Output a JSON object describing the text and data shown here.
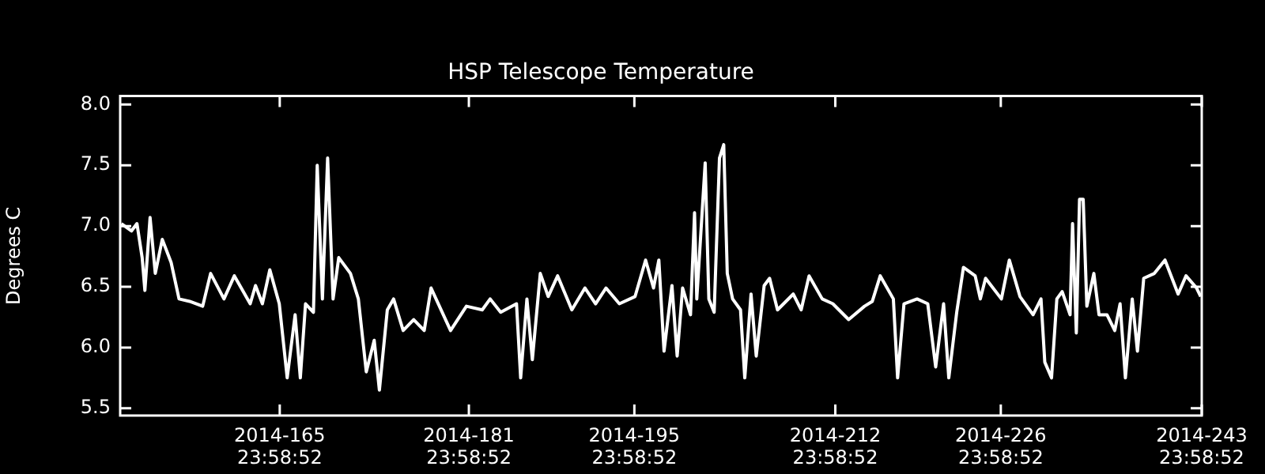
{
  "chart_data": {
    "type": "line",
    "title": "HSP Telescope Temperature",
    "ylabel": "Degrees C",
    "x": [
      "2014-06-01T14:24",
      "2014-06-02T11:02",
      "2014-06-02T22:05",
      "2014-06-03T08:38",
      "2014-06-03T14:10",
      "2014-06-04T00:43",
      "2014-06-04T11:17",
      "2014-06-05T01:26",
      "2014-06-05T19:26",
      "2014-06-06T11:31",
      "2014-06-07T08:53",
      "2014-06-08T11:31",
      "2014-06-09T03:36",
      "2014-06-10T06:43",
      "2014-06-11T03:50",
      "2014-06-12T12:00",
      "2014-06-12T22:48",
      "2014-06-13T12:43",
      "2014-06-14T03:50",
      "2014-06-14T23:02",
      "2014-06-15T15:07",
      "2014-06-16T07:12",
      "2014-06-16T17:46",
      "2014-06-17T04:19",
      "2014-06-17T20:24",
      "2014-06-18T04:05",
      "2014-06-18T14:38",
      "2014-06-19T01:12",
      "2014-06-19T12:14",
      "2014-06-19T23:46",
      "2014-06-20T23:31",
      "2014-06-21T15:36",
      "2014-06-22T07:41",
      "2014-06-22T23:46",
      "2014-06-23T10:19",
      "2014-06-24T02:24",
      "2014-06-24T15:07",
      "2014-06-25T10:34",
      "2014-06-26T07:55",
      "2014-06-27T05:17",
      "2014-06-27T19:12",
      "2014-06-29T10:48",
      "2014-06-30T18:58",
      "2014-07-02T03:07",
      "2014-07-02T19:12",
      "2014-07-03T16:34",
      "2014-07-05T00:43",
      "2014-07-05T09:07",
      "2014-07-05T21:50",
      "2014-07-06T08:53",
      "2014-07-07T00:58",
      "2014-07-07T17:02",
      "2014-07-08T12:14",
      "2014-07-09T17:02",
      "2014-07-10T19:41",
      "2014-07-11T17:17",
      "2014-07-12T14:24",
      "2014-07-13T17:31",
      "2014-07-15T01:26",
      "2014-07-15T22:48",
      "2014-07-16T14:53",
      "2014-07-17T01:41",
      "2014-07-17T12:14",
      "2014-07-18T04:19",
      "2014-07-18T14:53",
      "2014-07-19T01:55",
      "2014-07-19T18:00",
      "2014-07-20T02:10",
      "2014-07-20T06:43",
      "2014-07-20T23:46",
      "2014-07-21T07:12",
      "2014-07-21T18:00",
      "2014-07-22T04:48",
      "2014-07-22T13:26",
      "2014-07-22T20:38",
      "2014-07-23T07:26",
      "2014-07-23T23:31",
      "2014-07-24T08:10",
      "2014-07-24T20:53",
      "2014-07-25T07:26",
      "2014-07-25T23:31",
      "2014-07-26T10:34",
      "2014-07-27T02:38",
      "2014-07-28T10:34",
      "2014-07-29T02:38",
      "2014-07-29T18:43",
      "2014-07-30T21:22",
      "2014-07-31T18:58",
      "2014-08-02T03:07",
      "2014-08-03T11:17",
      "2014-08-04T03:07",
      "2014-08-04T19:12",
      "2014-08-05T21:50",
      "2014-08-06T06:29",
      "2014-08-06T19:26",
      "2014-08-07T22:05",
      "2014-08-08T19:41",
      "2014-08-09T11:46",
      "2014-08-10T03:50",
      "2014-08-10T14:24",
      "2014-08-11T06:29",
      "2014-08-11T20:10",
      "2014-08-12T19:55",
      "2014-08-13T06:29",
      "2014-08-13T17:02",
      "2014-08-15T01:12",
      "2014-08-15T17:17",
      "2014-08-16T14:53",
      "2014-08-17T17:31",
      "2014-08-18T09:36",
      "2014-08-18T17:17",
      "2014-08-19T06:58",
      "2014-08-19T17:46",
      "2014-08-20T04:34",
      "2014-08-20T20:38",
      "2014-08-21T01:41",
      "2014-08-21T09:22",
      "2014-08-21T15:50",
      "2014-08-21T23:17",
      "2014-08-22T06:43",
      "2014-08-22T20:53",
      "2014-08-23T07:26",
      "2014-08-23T23:31",
      "2014-08-24T15:22",
      "2014-08-25T02:10",
      "2014-08-25T12:58",
      "2014-08-26T02:53",
      "2014-08-26T13:26",
      "2014-08-27T02:10",
      "2014-08-27T23:46",
      "2014-08-28T21:22",
      "2014-08-30T00:00",
      "2014-08-30T16:05",
      "2014-08-31T13:26",
      "2014-08-31T21:50"
    ],
    "series": [
      {
        "color": "#ffffff",
        "values": [
          7.02,
          6.96,
          7.02,
          6.74,
          6.47,
          7.07,
          6.61,
          6.89,
          6.7,
          6.4,
          6.38,
          6.34,
          6.61,
          6.4,
          6.59,
          6.36,
          6.51,
          6.36,
          6.64,
          6.36,
          5.75,
          6.27,
          5.75,
          6.36,
          6.29,
          7.5,
          6.4,
          7.56,
          6.4,
          6.74,
          6.61,
          6.4,
          5.8,
          6.06,
          5.65,
          6.31,
          6.4,
          6.14,
          6.23,
          6.14,
          6.49,
          6.14,
          6.34,
          6.31,
          6.4,
          6.29,
          6.36,
          5.75,
          6.4,
          5.9,
          6.61,
          6.42,
          6.59,
          6.31,
          6.49,
          6.36,
          6.49,
          6.36,
          6.42,
          6.72,
          6.49,
          6.72,
          5.97,
          6.51,
          5.93,
          6.49,
          6.27,
          7.11,
          6.4,
          7.52,
          6.4,
          6.29,
          7.56,
          7.67,
          6.61,
          6.4,
          6.31,
          5.75,
          6.44,
          5.93,
          6.51,
          6.57,
          6.31,
          6.44,
          6.31,
          6.59,
          6.4,
          6.36,
          6.23,
          6.34,
          6.38,
          6.59,
          6.4,
          5.75,
          6.36,
          6.4,
          6.36,
          5.84,
          6.36,
          5.75,
          6.29,
          6.66,
          6.59,
          6.4,
          6.57,
          6.4,
          6.72,
          6.42,
          6.27,
          6.4,
          5.88,
          5.75,
          6.4,
          6.46,
          6.27,
          7.02,
          6.12,
          7.22,
          7.22,
          6.34,
          6.61,
          6.27,
          6.27,
          6.14,
          6.36,
          5.75,
          6.4,
          5.97,
          6.57,
          6.61,
          6.72,
          6.44,
          6.59,
          6.49,
          6.42
        ]
      }
    ],
    "xlim": [
      "2014-06-01T12:00",
      "2014-08-31T23:59"
    ],
    "xticks": [
      {
        "value": "2014-06-14T23:59",
        "label": "2014-165 23:58:52"
      },
      {
        "value": "2014-06-30T23:59",
        "label": "2014-181 23:58:52"
      },
      {
        "value": "2014-07-14T23:59",
        "label": "2014-195 23:58:52"
      },
      {
        "value": "2014-07-31T23:59",
        "label": "2014-212 23:58:52"
      },
      {
        "value": "2014-08-14T23:59",
        "label": "2014-226 23:58:52"
      },
      {
        "value": "2014-08-31T23:59",
        "label": "2014-243 23:58:52"
      }
    ],
    "ylim": [
      5.44,
      8.07
    ],
    "yticks": [
      {
        "value": 5.5,
        "label": "5.5"
      },
      {
        "value": 6,
        "label": "6.0"
      },
      {
        "value": 6.5,
        "label": "6.5"
      },
      {
        "value": 7,
        "label": "7.0"
      },
      {
        "value": 7.5,
        "label": "7.5"
      },
      {
        "value": 8,
        "label": "8.0"
      }
    ],
    "marker": "none",
    "line_style": "solid"
  }
}
